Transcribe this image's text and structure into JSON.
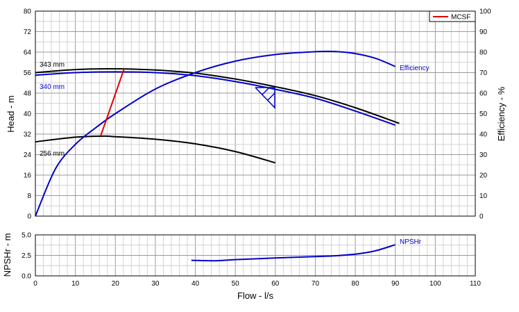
{
  "chart_data": [
    {
      "type": "line",
      "name": "head-efficiency",
      "xlabel": "Flow - l/s",
      "ylabel": "Head - m",
      "y2label": "Efficiency - %",
      "xlim": [
        0,
        110
      ],
      "ylim": [
        0,
        80
      ],
      "y2lim": [
        0,
        100
      ],
      "x_ticks": [
        0,
        10,
        20,
        30,
        40,
        50,
        60,
        70,
        80,
        90,
        100,
        110
      ],
      "y_ticks": [
        0,
        8,
        16,
        24,
        32,
        40,
        48,
        56,
        64,
        72,
        80
      ],
      "y2_ticks": [
        0,
        10,
        20,
        30,
        40,
        50,
        60,
        70,
        80,
        90,
        100
      ],
      "grid": true,
      "legend": {
        "position": "top-right",
        "entries": [
          "MCSF"
        ]
      },
      "series": [
        {
          "name": "343 mm",
          "axis": "left",
          "color": "#000000",
          "x": [
            0,
            10,
            20,
            30,
            40,
            50,
            60,
            70,
            80,
            91
          ],
          "y": [
            56.0,
            57.2,
            57.5,
            57.0,
            55.8,
            53.5,
            50.5,
            47.0,
            42.3,
            36.2
          ]
        },
        {
          "name": "340 mm",
          "axis": "left",
          "color": "#0000cc",
          "x": [
            0,
            10,
            20,
            30,
            40,
            50,
            60,
            70,
            80,
            90
          ],
          "y": [
            55.0,
            56.0,
            56.3,
            56.0,
            54.8,
            52.5,
            49.5,
            46.0,
            41.0,
            35.5
          ]
        },
        {
          "name": "256 mm",
          "axis": "left",
          "color": "#000000",
          "x": [
            0,
            10,
            17,
            20,
            30,
            40,
            50,
            60
          ],
          "y": [
            29.0,
            30.8,
            31.2,
            31.0,
            30.0,
            28.2,
            25.2,
            20.8
          ]
        },
        {
          "name": "Efficiency",
          "axis": "right",
          "color": "#0000cc",
          "x": [
            0,
            5,
            10,
            15,
            20,
            30,
            40,
            50,
            60,
            70,
            75,
            80,
            85,
            90
          ],
          "y": [
            0,
            23,
            35,
            43,
            50,
            62,
            70,
            75.6,
            78.8,
            80.2,
            80.3,
            79.3,
            77,
            73
          ]
        },
        {
          "name": "MCSF",
          "axis": "left",
          "color": "#dd0000",
          "x": [
            16.3,
            22.2
          ],
          "y": [
            31.2,
            57.5
          ]
        }
      ],
      "annotations": [
        "343 mm",
        "340 mm",
        "256 mm",
        "Efficiency"
      ]
    },
    {
      "type": "line",
      "name": "npshr",
      "xlabel": "Flow - l/s",
      "ylabel": "NPSHr - m",
      "xlim": [
        0,
        110
      ],
      "ylim": [
        0,
        5
      ],
      "x_ticks": [
        0,
        10,
        20,
        30,
        40,
        50,
        60,
        70,
        80,
        90,
        100,
        110
      ],
      "y_ticks": [
        0,
        2.5,
        5
      ],
      "y_tick_labels": [
        "0.0",
        "2.5",
        "5.0"
      ],
      "grid": true,
      "series": [
        {
          "name": "NPSHr",
          "color": "#0000cc",
          "x": [
            39,
            45,
            50,
            60,
            70,
            75,
            80,
            85,
            90
          ],
          "y": [
            1.9,
            1.85,
            1.98,
            2.18,
            2.35,
            2.45,
            2.65,
            3.05,
            3.8
          ]
        }
      ],
      "annotations": [
        "NPSHr"
      ]
    }
  ]
}
